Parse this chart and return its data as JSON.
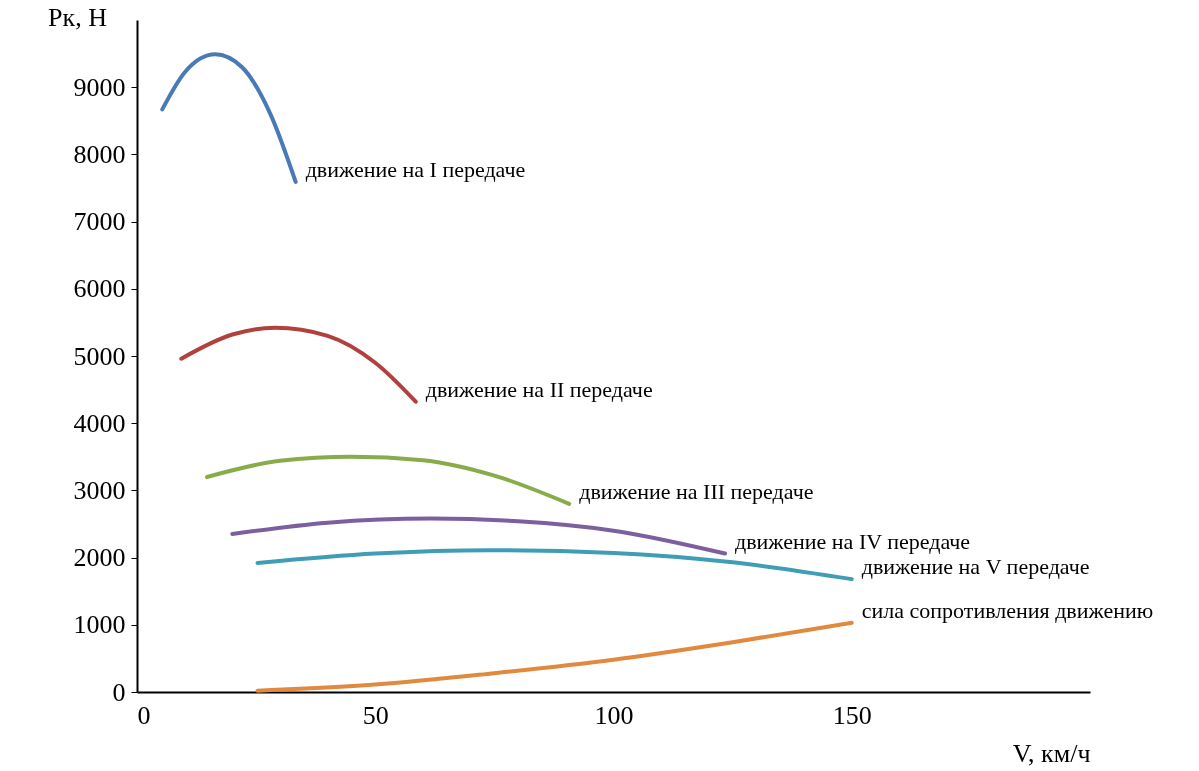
{
  "chart_data": {
    "type": "line",
    "xlabel": "V, км/ч",
    "ylabel": "Рк, Н",
    "xlim": [
      0,
      200
    ],
    "xticks": [
      0,
      50,
      100,
      150
    ],
    "ylim": [
      0,
      10000
    ],
    "yticks": [
      0,
      1000,
      2000,
      3000,
      4000,
      5000,
      6000,
      7000,
      8000,
      9000
    ],
    "grid": false,
    "legend": false,
    "marker": "none",
    "line_style": "solid",
    "series": [
      {
        "name": "движение на I передаче",
        "color": "#4a7ab5",
        "x": [
          5.3,
          10,
          16.4,
          22,
          28,
          33.3
        ],
        "values": [
          8670,
          9220,
          9490,
          9300,
          8600,
          7590
        ]
      },
      {
        "name": "движение на II передаче",
        "color": "#b0413e",
        "x": [
          9.3,
          20,
          29,
          40,
          50,
          58.5
        ],
        "values": [
          4960,
          5320,
          5420,
          5300,
          4900,
          4320
        ]
      },
      {
        "name": "движение на III передаче",
        "color": "#8aab4a",
        "x": [
          14.7,
          30,
          45,
          60,
          75,
          90.7
        ],
        "values": [
          3200,
          3440,
          3500,
          3450,
          3220,
          2800
        ]
      },
      {
        "name": "движение на IV передаче",
        "color": "#7b5f9e",
        "x": [
          20,
          40,
          61.7,
          80,
          100,
          123.4
        ],
        "values": [
          2350,
          2520,
          2580,
          2540,
          2400,
          2060
        ]
      },
      {
        "name": "движение на V передаче",
        "color": "#3f9db6",
        "x": [
          25.3,
          50,
          74,
          100,
          125,
          150
        ],
        "values": [
          1920,
          2060,
          2110,
          2070,
          1930,
          1680
        ]
      },
      {
        "name": "сила сопротивления движению",
        "color": "#e0893f",
        "x": [
          25.3,
          50,
          75,
          100,
          125,
          150
        ],
        "values": [
          20,
          110,
          280,
          480,
          740,
          1030
        ]
      }
    ]
  }
}
